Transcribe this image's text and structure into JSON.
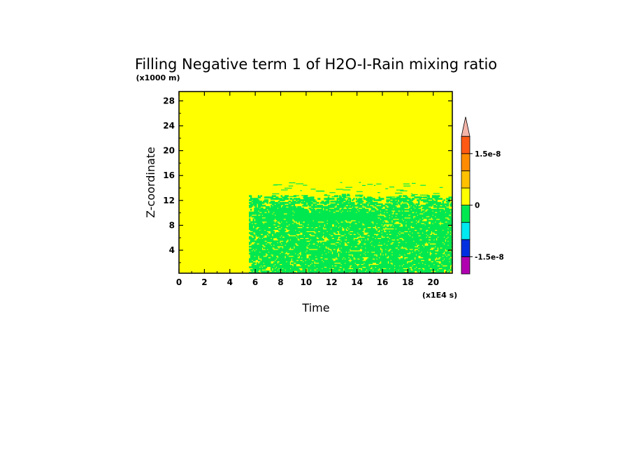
{
  "chart_data": {
    "type": "heatmap",
    "title": "Filling Negative term 1 of H2O-I-Rain mixing ratio",
    "xlabel": "Time",
    "ylabel": "Z-coordinate",
    "x_unit": "(x1E4 s)",
    "y_unit": "(x1000 m)",
    "xlim": [
      0,
      21.5
    ],
    "ylim": [
      0.3,
      29.5
    ],
    "x_ticks": [
      "0",
      "2",
      "4",
      "6",
      "8",
      "10",
      "12",
      "14",
      "16",
      "18",
      "20"
    ],
    "y_ticks": [
      "4",
      "8",
      "12",
      "16",
      "20",
      "24",
      "28"
    ],
    "background_level": "0 to 5e-9",
    "regions": [
      {
        "description": "mixed green/yellow speckle (slightly negative values)",
        "x_range": [
          5.5,
          21.5
        ],
        "z_range": [
          0.3,
          12.5
        ]
      },
      {
        "description": "solid green band",
        "x_range": [
          9.0,
          15.5
        ],
        "z_range": [
          8.8,
          10.0
        ]
      },
      {
        "description": "sparse green streaks",
        "x_range": [
          7.0,
          20.5
        ],
        "z_range": [
          12.5,
          15.0
        ]
      }
    ],
    "colorbar": {
      "levels": [
        "-2e-8",
        "-1.5e-8",
        "-1e-8",
        "-5e-9",
        "0",
        "5e-9",
        "1e-8",
        "1.5e-8",
        "2e-8"
      ],
      "labels": [
        "1.5e-8",
        "0",
        "-1.5e-8"
      ],
      "colors": [
        "#b000b0",
        "#0030e0",
        "#00e8f0",
        "#00e850",
        "#ffff00",
        "#ffc000",
        "#ff8c00",
        "#ff5a14"
      ],
      "over_color": "#f4b4a8"
    }
  }
}
